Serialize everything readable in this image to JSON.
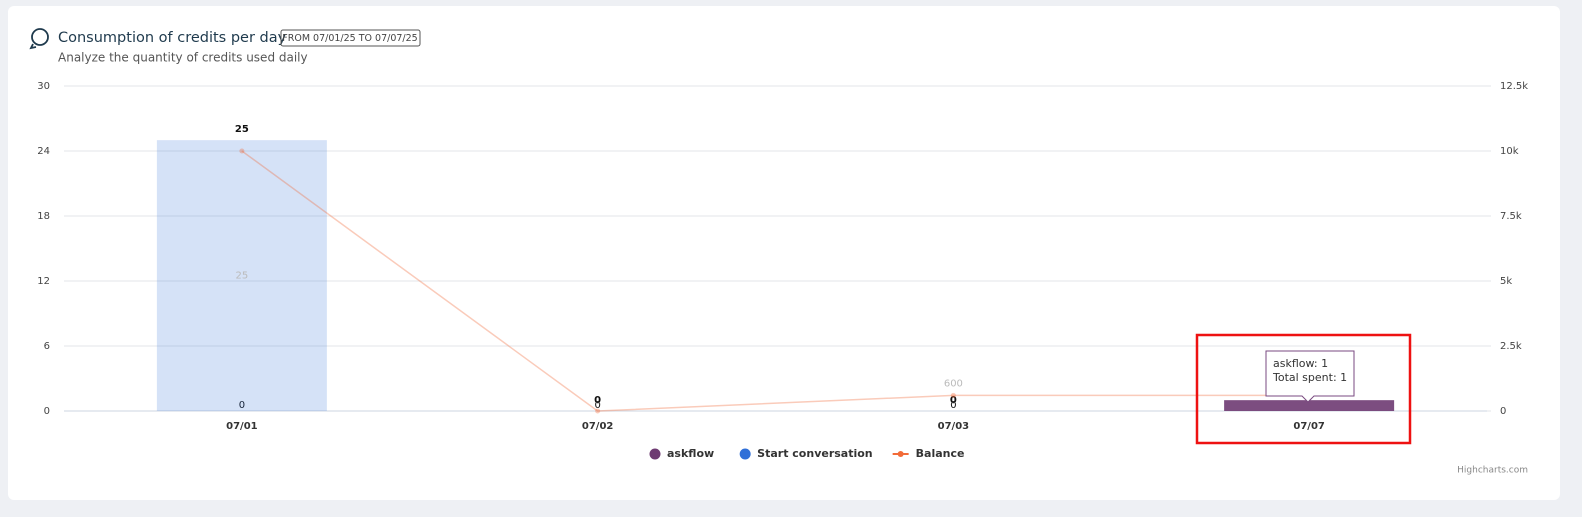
{
  "chart_data": {
    "type": "bar",
    "title": "Consumption of credits per day",
    "badge": "FROM 07/01/25 TO 07/07/25",
    "subtitle": "Analyze the quantity of credits used daily",
    "categories": [
      "07/01",
      "07/02",
      "07/03",
      "07/07"
    ],
    "stacked": true,
    "series": [
      {
        "name": "askflow",
        "color": "#6e3a72",
        "values": [
          0,
          0,
          0,
          1
        ]
      },
      {
        "name": "Start conversation",
        "color": "#2f6fd8",
        "values": [
          25,
          0,
          0,
          0
        ]
      },
      {
        "name": "Balance",
        "type": "line",
        "axis": "y2",
        "color": "#f26b38",
        "values": [
          10000,
          0,
          600,
          600
        ],
        "value_labels": [
          null,
          null,
          "600",
          null
        ]
      }
    ],
    "totals": [
      25,
      0,
      0,
      1
    ],
    "ylim": [
      0,
      30
    ],
    "yticks": [
      0,
      6,
      12,
      18,
      24,
      30
    ],
    "y2lim": [
      0,
      12500
    ],
    "y2ticks": [
      0,
      {
        "value": 2500,
        "label": "2.5k"
      },
      {
        "value": 5000,
        "label": "5k"
      },
      {
        "value": 7500,
        "label": "7.5k"
      },
      {
        "value": 10000,
        "label": "10k"
      },
      {
        "value": 12500,
        "label": "12.5k"
      }
    ],
    "grid": true,
    "legend": "bottom",
    "tooltip": [
      "askflow: 1",
      "Total spent: 1"
    ],
    "credits": "Highcharts.com"
  }
}
